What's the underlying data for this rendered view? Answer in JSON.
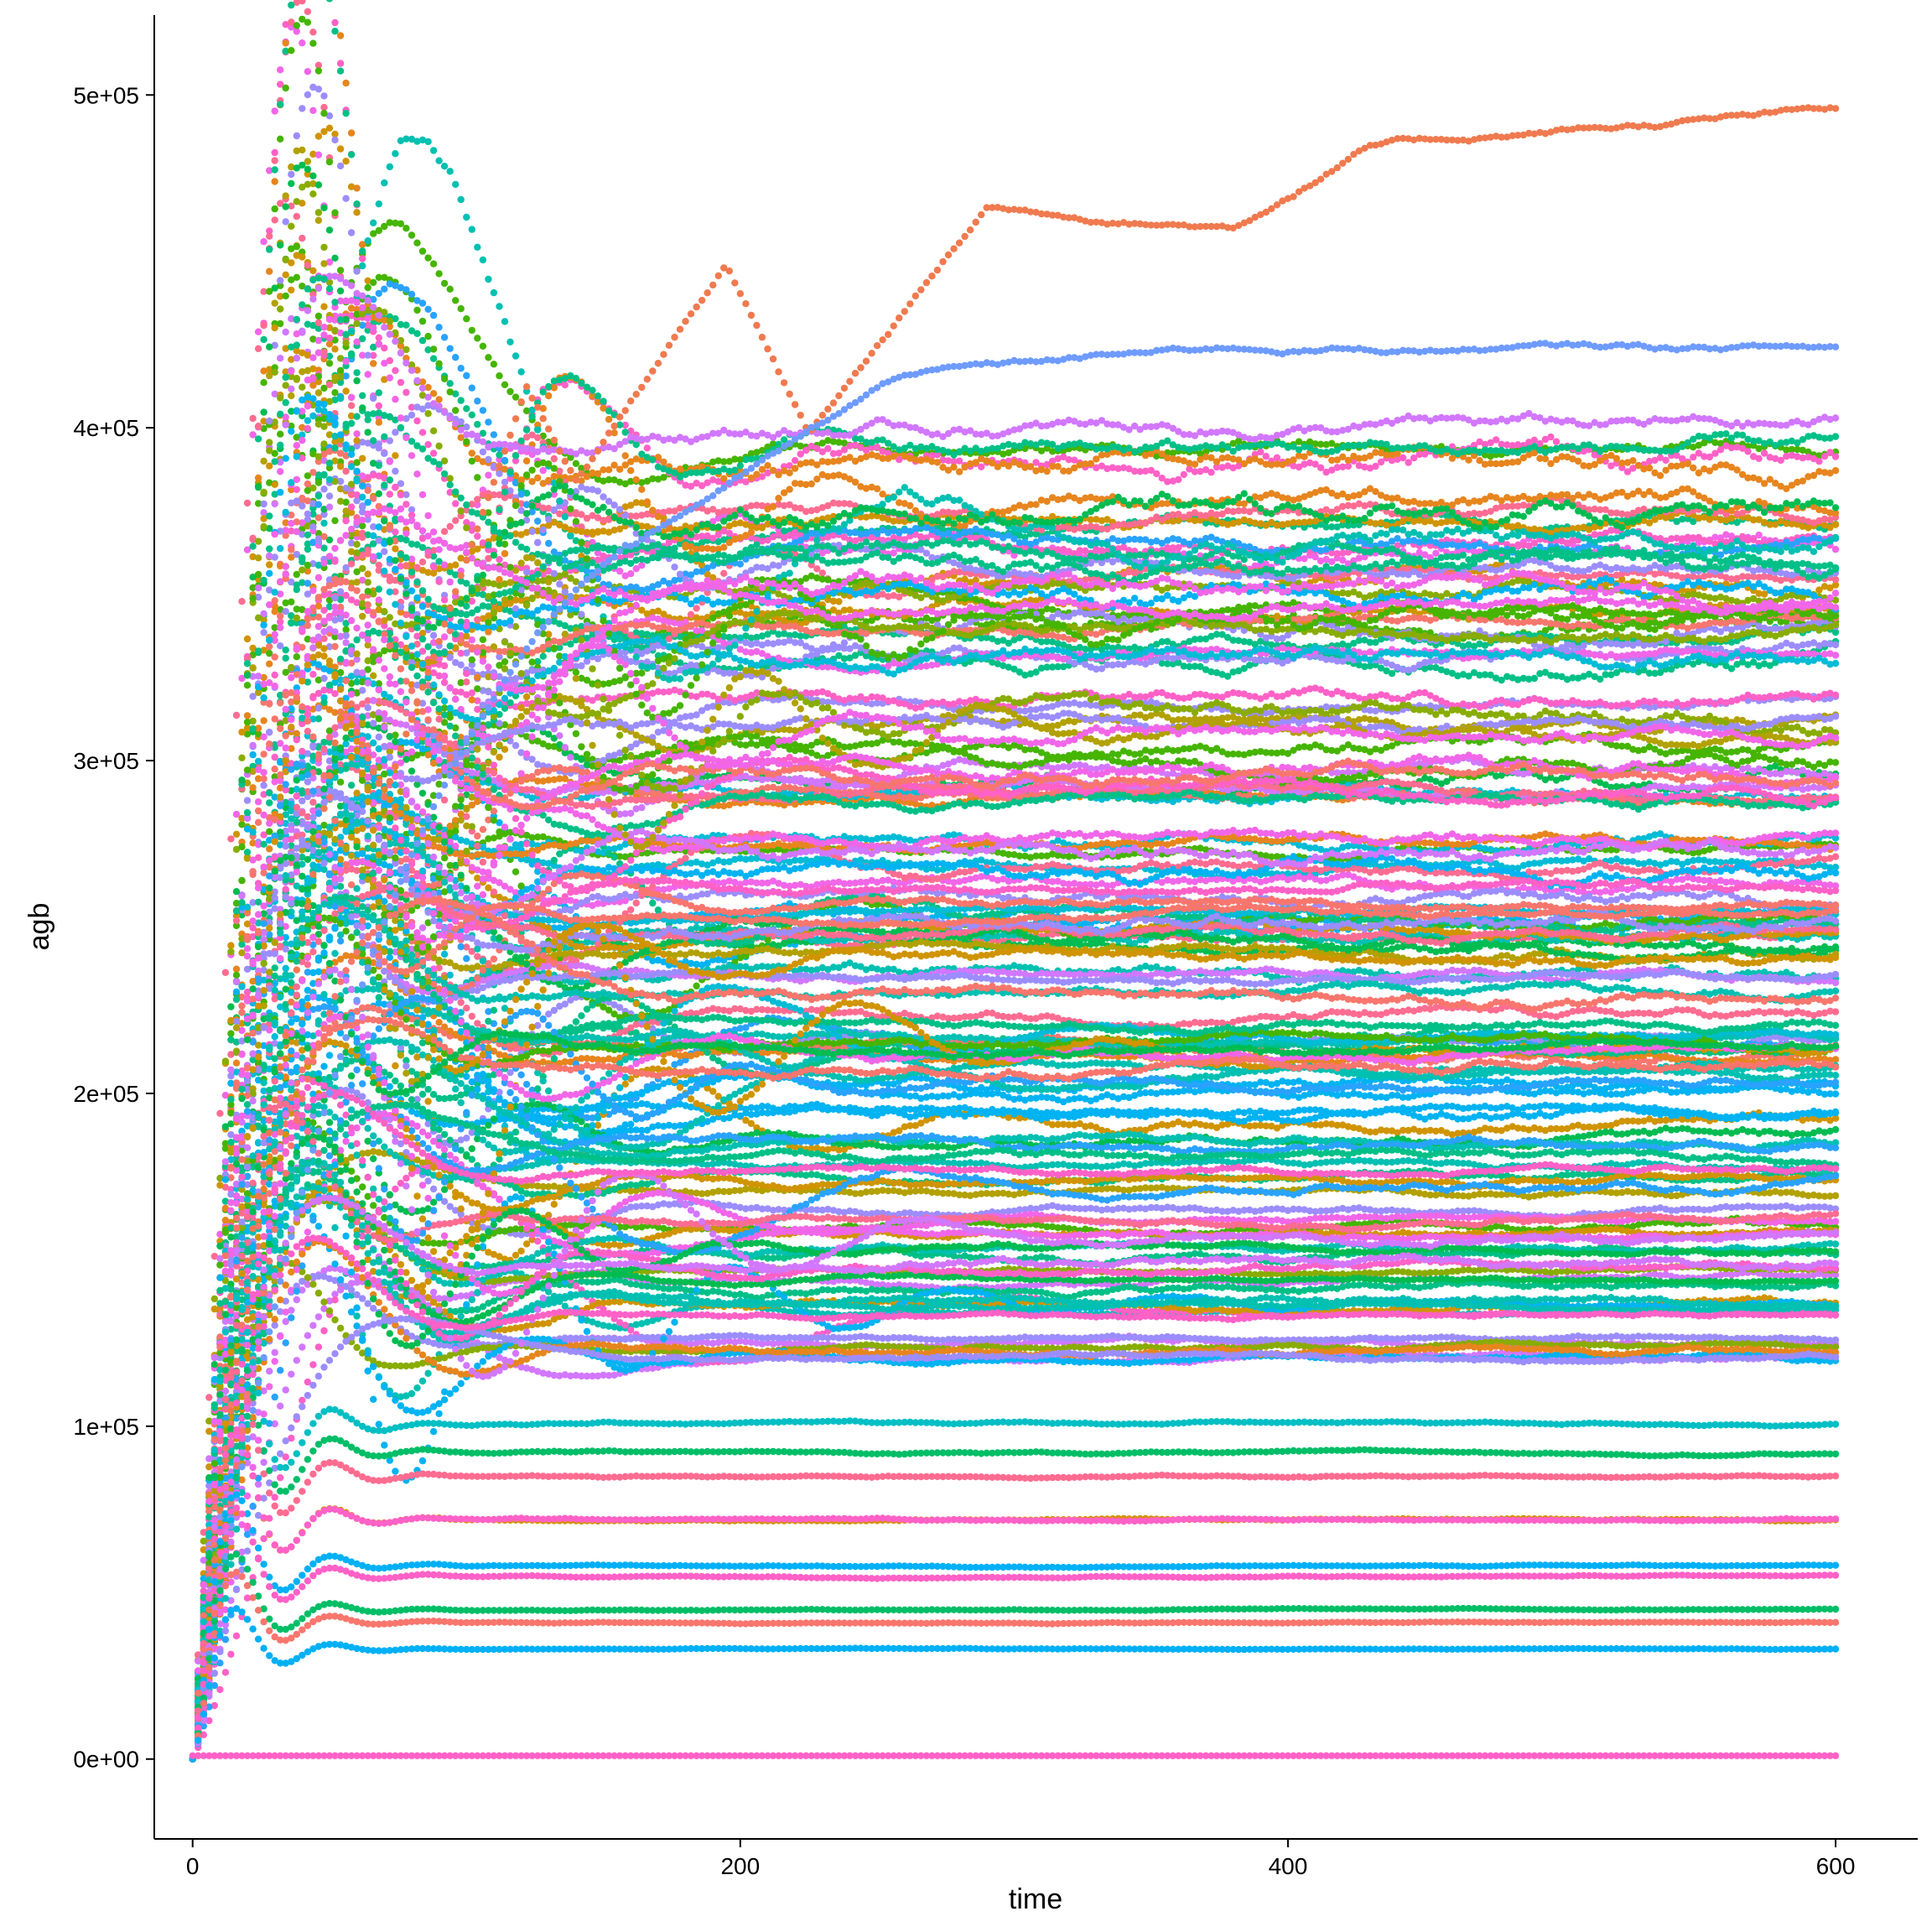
{
  "chart_data": {
    "type": "scatter",
    "title": "",
    "xlabel": "time",
    "ylabel": "agb",
    "xlim": [
      -14,
      630
    ],
    "ylim": [
      -24000,
      524000
    ],
    "x_ticks": [
      0,
      200,
      400,
      600
    ],
    "x_tick_labels": [
      "0",
      "200",
      "400",
      "600"
    ],
    "y_ticks": [
      0,
      100000,
      200000,
      300000,
      400000,
      500000
    ],
    "y_tick_labels": [
      "0e+00",
      "1e+05",
      "2e+05",
      "3e+05",
      "4e+05",
      "5e+05"
    ],
    "grid": false,
    "legend": "none",
    "x_range": [
      0,
      600
    ],
    "palette": [
      "#F8766D",
      "#E7851E",
      "#D09400",
      "#B2A100",
      "#89AC00",
      "#45B500",
      "#00BC51",
      "#00C087",
      "#00C0B2",
      "#00BCD6",
      "#00B3F2",
      "#29A3FF",
      "#9C8DFF",
      "#D277FF",
      "#F166E8",
      "#FF61C7",
      "#FF6C91"
    ],
    "highlight_series": [
      {
        "color": "#F07A4F",
        "plateau": 490000,
        "peaks": [
          [
            55,
            320000
          ],
          [
            122,
            413000
          ],
          [
            195,
            450000
          ]
        ],
        "end": 495000
      },
      {
        "color": "#6E9BFF",
        "plateau": 422000,
        "end": 422000
      },
      {
        "color": "#00BFC4",
        "plateau": 101000,
        "end": 101000
      },
      {
        "color": "#00BE67",
        "plateau": 92000,
        "end": 92000
      },
      {
        "color": "#FF6C91",
        "plateau": 85000,
        "end": 85000
      },
      {
        "color": "#D39200",
        "plateau": 72000,
        "end": 72000
      },
      {
        "color": "#FF61C7",
        "plateau": 72000,
        "end": 72000
      },
      {
        "color": "#00B0F6",
        "plateau": 58000,
        "end": 58000
      },
      {
        "color": "#FF61C7",
        "plateau": 55000,
        "end": 55000
      },
      {
        "color": "#00BE67",
        "plateau": 45000,
        "end": 45000
      },
      {
        "color": "#F8766D",
        "plateau": 41000,
        "end": 41000
      },
      {
        "color": "#00B0F6",
        "plateau": 33000,
        "end": 33000
      },
      {
        "color": "#FF61C7",
        "plateau": 1000,
        "end": 1000
      }
    ],
    "plateau_band": [
      120000,
      400000
    ],
    "n_series": 200
  }
}
